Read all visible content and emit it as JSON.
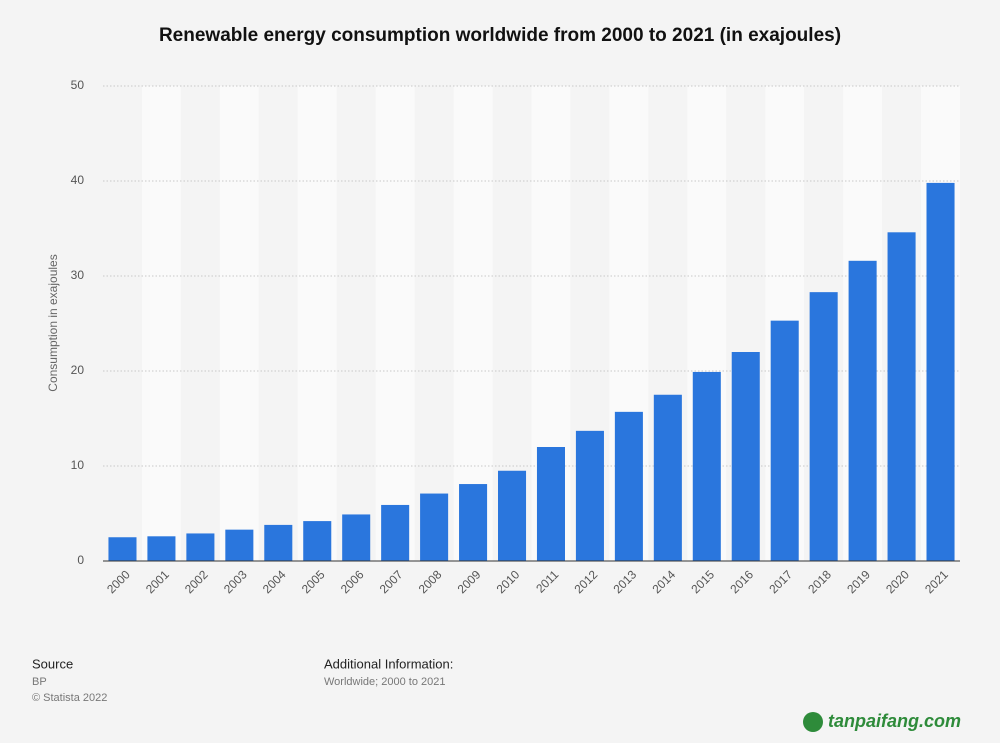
{
  "chart_data": {
    "type": "bar",
    "title": "Renewable energy consumption worldwide from 2000 to 2021 (in exajoules)",
    "y_label": "Consumption in exajoules",
    "categories": [
      "2000",
      "2001",
      "2002",
      "2003",
      "2004",
      "2005",
      "2006",
      "2007",
      "2008",
      "2009",
      "2010",
      "2011",
      "2012",
      "2013",
      "2014",
      "2015",
      "2016",
      "2017",
      "2018",
      "2019",
      "2020",
      "2021"
    ],
    "values": [
      2.5,
      2.6,
      2.9,
      3.3,
      3.8,
      4.2,
      4.9,
      5.9,
      7.1,
      8.1,
      9.5,
      12.0,
      13.7,
      15.7,
      17.5,
      19.9,
      22.0,
      25.3,
      28.3,
      31.6,
      34.6,
      39.8
    ],
    "color": "#2a76dd",
    "ylim": [
      0,
      50
    ],
    "yticks": [
      0,
      10,
      20,
      30,
      40,
      50
    ],
    "grid": true
  },
  "footer": {
    "source_heading": "Source",
    "source": "BP",
    "copyright": "© Statista 2022",
    "info_heading": "Additional Information:",
    "info": "Worldwide; 2000 to 2021",
    "watermark": "tanpaifang.com"
  }
}
